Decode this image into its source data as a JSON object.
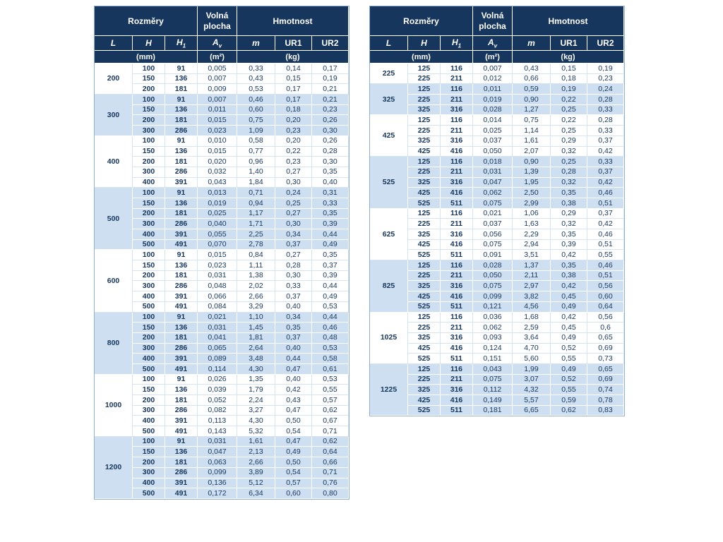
{
  "colors": {
    "header_bg": "#17365d",
    "header_text": "#ffffff",
    "body_text": "#17365d",
    "shaded_row_bg": "#cddff0",
    "plain_row_bg": "#ffffff",
    "grid_plain": "#d6e4f1",
    "grid_shaded": "#ffffff",
    "outer_border": "#8fafd0"
  },
  "header": {
    "group_dimensions": "Rozměry",
    "group_free_area": "Volná plocha",
    "group_weight": "Hmotnost",
    "columns": [
      {
        "main": "L",
        "sub": "",
        "italic": true
      },
      {
        "main": "H",
        "sub": "",
        "italic": true
      },
      {
        "main": "H",
        "sub": "1",
        "italic": true
      },
      {
        "main": "A",
        "sub": "v",
        "italic": true
      },
      {
        "main": "m",
        "sub": "",
        "italic": true
      },
      {
        "main": "UR1",
        "sub": "",
        "italic": false
      },
      {
        "main": "UR2",
        "sub": "",
        "italic": false
      }
    ],
    "units": {
      "mm": "(mm)",
      "m2": "(m²)",
      "kg": "(kg)"
    }
  },
  "tables": [
    {
      "name": "left",
      "groups": [
        {
          "L": "200",
          "shaded": false,
          "rows": [
            [
              "100",
              "91",
              "0,005",
              "0,33",
              "0,14",
              "0,17"
            ],
            [
              "150",
              "136",
              "0,007",
              "0,43",
              "0,15",
              "0,19"
            ],
            [
              "200",
              "181",
              "0,009",
              "0,53",
              "0,17",
              "0,21"
            ]
          ]
        },
        {
          "L": "300",
          "shaded": true,
          "rows": [
            [
              "100",
              "91",
              "0,007",
              "0,46",
              "0,17",
              "0,21"
            ],
            [
              "150",
              "136",
              "0,011",
              "0,60",
              "0,18",
              "0,23"
            ],
            [
              "200",
              "181",
              "0,015",
              "0,75",
              "0,20",
              "0,26"
            ],
            [
              "300",
              "286",
              "0,023",
              "1,09",
              "0,23",
              "0,30"
            ]
          ]
        },
        {
          "L": "400",
          "shaded": false,
          "rows": [
            [
              "100",
              "91",
              "0,010",
              "0,58",
              "0,20",
              "0,26"
            ],
            [
              "150",
              "136",
              "0,015",
              "0,77",
              "0,22",
              "0,28"
            ],
            [
              "200",
              "181",
              "0,020",
              "0,96",
              "0,23",
              "0,30"
            ],
            [
              "300",
              "286",
              "0,032",
              "1,40",
              "0,27",
              "0,35"
            ],
            [
              "400",
              "391",
              "0,043",
              "1,84",
              "0,30",
              "0,40"
            ]
          ]
        },
        {
          "L": "500",
          "shaded": true,
          "rows": [
            [
              "100",
              "91",
              "0,013",
              "0,71",
              "0,24",
              "0,31"
            ],
            [
              "150",
              "136",
              "0,019",
              "0,94",
              "0,25",
              "0,33"
            ],
            [
              "200",
              "181",
              "0,025",
              "1,17",
              "0,27",
              "0,35"
            ],
            [
              "300",
              "286",
              "0,040",
              "1,71",
              "0,30",
              "0,39"
            ],
            [
              "400",
              "391",
              "0,055",
              "2,25",
              "0,34",
              "0,44"
            ],
            [
              "500",
              "491",
              "0,070",
              "2,78",
              "0,37",
              "0,49"
            ]
          ]
        },
        {
          "L": "600",
          "shaded": false,
          "rows": [
            [
              "100",
              "91",
              "0,015",
              "0,84",
              "0,27",
              "0,35"
            ],
            [
              "150",
              "136",
              "0,023",
              "1,11",
              "0,28",
              "0,37"
            ],
            [
              "200",
              "181",
              "0,031",
              "1,38",
              "0,30",
              "0,39"
            ],
            [
              "300",
              "286",
              "0,048",
              "2,02",
              "0,33",
              "0,44"
            ],
            [
              "400",
              "391",
              "0,066",
              "2,66",
              "0,37",
              "0,49"
            ],
            [
              "500",
              "491",
              "0,084",
              "3,29",
              "0,40",
              "0,53"
            ]
          ]
        },
        {
          "L": "800",
          "shaded": true,
          "rows": [
            [
              "100",
              "91",
              "0,021",
              "1,10",
              "0,34",
              "0,44"
            ],
            [
              "150",
              "136",
              "0,031",
              "1,45",
              "0,35",
              "0,46"
            ],
            [
              "200",
              "181",
              "0,041",
              "1,81",
              "0,37",
              "0,48"
            ],
            [
              "300",
              "286",
              "0,065",
              "2,64",
              "0,40",
              "0,53"
            ],
            [
              "400",
              "391",
              "0,089",
              "3,48",
              "0,44",
              "0,58"
            ],
            [
              "500",
              "491",
              "0,114",
              "4,30",
              "0,47",
              "0,61"
            ]
          ]
        },
        {
          "L": "1000",
          "shaded": false,
          "rows": [
            [
              "100",
              "91",
              "0,026",
              "1,35",
              "0,40",
              "0,53"
            ],
            [
              "150",
              "136",
              "0,039",
              "1,79",
              "0,42",
              "0,55"
            ],
            [
              "200",
              "181",
              "0,052",
              "2,24",
              "0,43",
              "0,57"
            ],
            [
              "300",
              "286",
              "0,082",
              "3,27",
              "0,47",
              "0,62"
            ],
            [
              "400",
              "391",
              "0,113",
              "4,30",
              "0,50",
              "0,67"
            ],
            [
              "500",
              "491",
              "0,143",
              "5,32",
              "0,54",
              "0,71"
            ]
          ]
        },
        {
          "L": "1200",
          "shaded": true,
          "rows": [
            [
              "100",
              "91",
              "0,031",
              "1,61",
              "0,47",
              "0,62"
            ],
            [
              "150",
              "136",
              "0,047",
              "2,13",
              "0,49",
              "0,64"
            ],
            [
              "200",
              "181",
              "0,063",
              "2,66",
              "0,50",
              "0,66"
            ],
            [
              "300",
              "286",
              "0,099",
              "3,89",
              "0,54",
              "0,71"
            ],
            [
              "400",
              "391",
              "0,136",
              "5,12",
              "0,57",
              "0,76"
            ],
            [
              "500",
              "491",
              "0,172",
              "6,34",
              "0,60",
              "0,80"
            ]
          ]
        }
      ]
    },
    {
      "name": "right",
      "groups": [
        {
          "L": "225",
          "shaded": false,
          "rows": [
            [
              "125",
              "116",
              "0,007",
              "0,43",
              "0,15",
              "0,19"
            ],
            [
              "225",
              "211",
              "0,012",
              "0,66",
              "0,18",
              "0,23"
            ]
          ]
        },
        {
          "L": "325",
          "shaded": true,
          "rows": [
            [
              "125",
              "116",
              "0,011",
              "0,59",
              "0,19",
              "0,24"
            ],
            [
              "225",
              "211",
              "0,019",
              "0,90",
              "0,22",
              "0,28"
            ],
            [
              "325",
              "316",
              "0,028",
              "1,27",
              "0,25",
              "0,33"
            ]
          ]
        },
        {
          "L": "425",
          "shaded": false,
          "rows": [
            [
              "125",
              "116",
              "0,014",
              "0,75",
              "0,22",
              "0,28"
            ],
            [
              "225",
              "211",
              "0,025",
              "1,14",
              "0,25",
              "0,33"
            ],
            [
              "325",
              "316",
              "0,037",
              "1,61",
              "0,29",
              "0,37"
            ],
            [
              "425",
              "416",
              "0,050",
              "2,07",
              "0,32",
              "0,42"
            ]
          ]
        },
        {
          "L": "525",
          "shaded": true,
          "rows": [
            [
              "125",
              "116",
              "0,018",
              "0,90",
              "0,25",
              "0,33"
            ],
            [
              "225",
              "211",
              "0,031",
              "1,39",
              "0,28",
              "0,37"
            ],
            [
              "325",
              "316",
              "0,047",
              "1,95",
              "0,32",
              "0,42"
            ],
            [
              "425",
              "416",
              "0,062",
              "2,50",
              "0,35",
              "0,46"
            ],
            [
              "525",
              "511",
              "0,075",
              "2,99",
              "0,38",
              "0,51"
            ]
          ]
        },
        {
          "L": "625",
          "shaded": false,
          "rows": [
            [
              "125",
              "116",
              "0,021",
              "1,06",
              "0,29",
              "0,37"
            ],
            [
              "225",
              "211",
              "0,037",
              "1,63",
              "0,32",
              "0,42"
            ],
            [
              "325",
              "316",
              "0,056",
              "2,29",
              "0,35",
              "0,46"
            ],
            [
              "425",
              "416",
              "0,075",
              "2,94",
              "0,39",
              "0,51"
            ],
            [
              "525",
              "511",
              "0,091",
              "3,51",
              "0,42",
              "0,55"
            ]
          ]
        },
        {
          "L": "825",
          "shaded": true,
          "rows": [
            [
              "125",
              "116",
              "0,028",
              "1,37",
              "0,35",
              "0,46"
            ],
            [
              "225",
              "211",
              "0,050",
              "2,11",
              "0,38",
              "0,51"
            ],
            [
              "325",
              "316",
              "0,075",
              "2,97",
              "0,42",
              "0,56"
            ],
            [
              "425",
              "416",
              "0,099",
              "3,82",
              "0,45",
              "0,60"
            ],
            [
              "525",
              "511",
              "0,121",
              "4,56",
              "0,49",
              "0,64"
            ]
          ]
        },
        {
          "L": "1025",
          "shaded": false,
          "rows": [
            [
              "125",
              "116",
              "0,036",
              "1,68",
              "0,42",
              "0,56"
            ],
            [
              "225",
              "211",
              "0,062",
              "2,59",
              "0,45",
              "0,6"
            ],
            [
              "325",
              "316",
              "0,093",
              "3,64",
              "0,49",
              "0,65"
            ],
            [
              "425",
              "416",
              "0,124",
              "4,70",
              "0,52",
              "0,69"
            ],
            [
              "525",
              "511",
              "0,151",
              "5,60",
              "0,55",
              "0,73"
            ]
          ]
        },
        {
          "L": "1225",
          "shaded": true,
          "rows": [
            [
              "125",
              "116",
              "0,043",
              "1,99",
              "0,49",
              "0,65"
            ],
            [
              "225",
              "211",
              "0,075",
              "3,07",
              "0,52",
              "0,69"
            ],
            [
              "325",
              "316",
              "0,112",
              "4,32",
              "0,55",
              "0,74"
            ],
            [
              "425",
              "416",
              "0,149",
              "5,57",
              "0,59",
              "0,78"
            ],
            [
              "525",
              "511",
              "0,181",
              "6,65",
              "0,62",
              "0,83"
            ]
          ]
        }
      ]
    }
  ]
}
